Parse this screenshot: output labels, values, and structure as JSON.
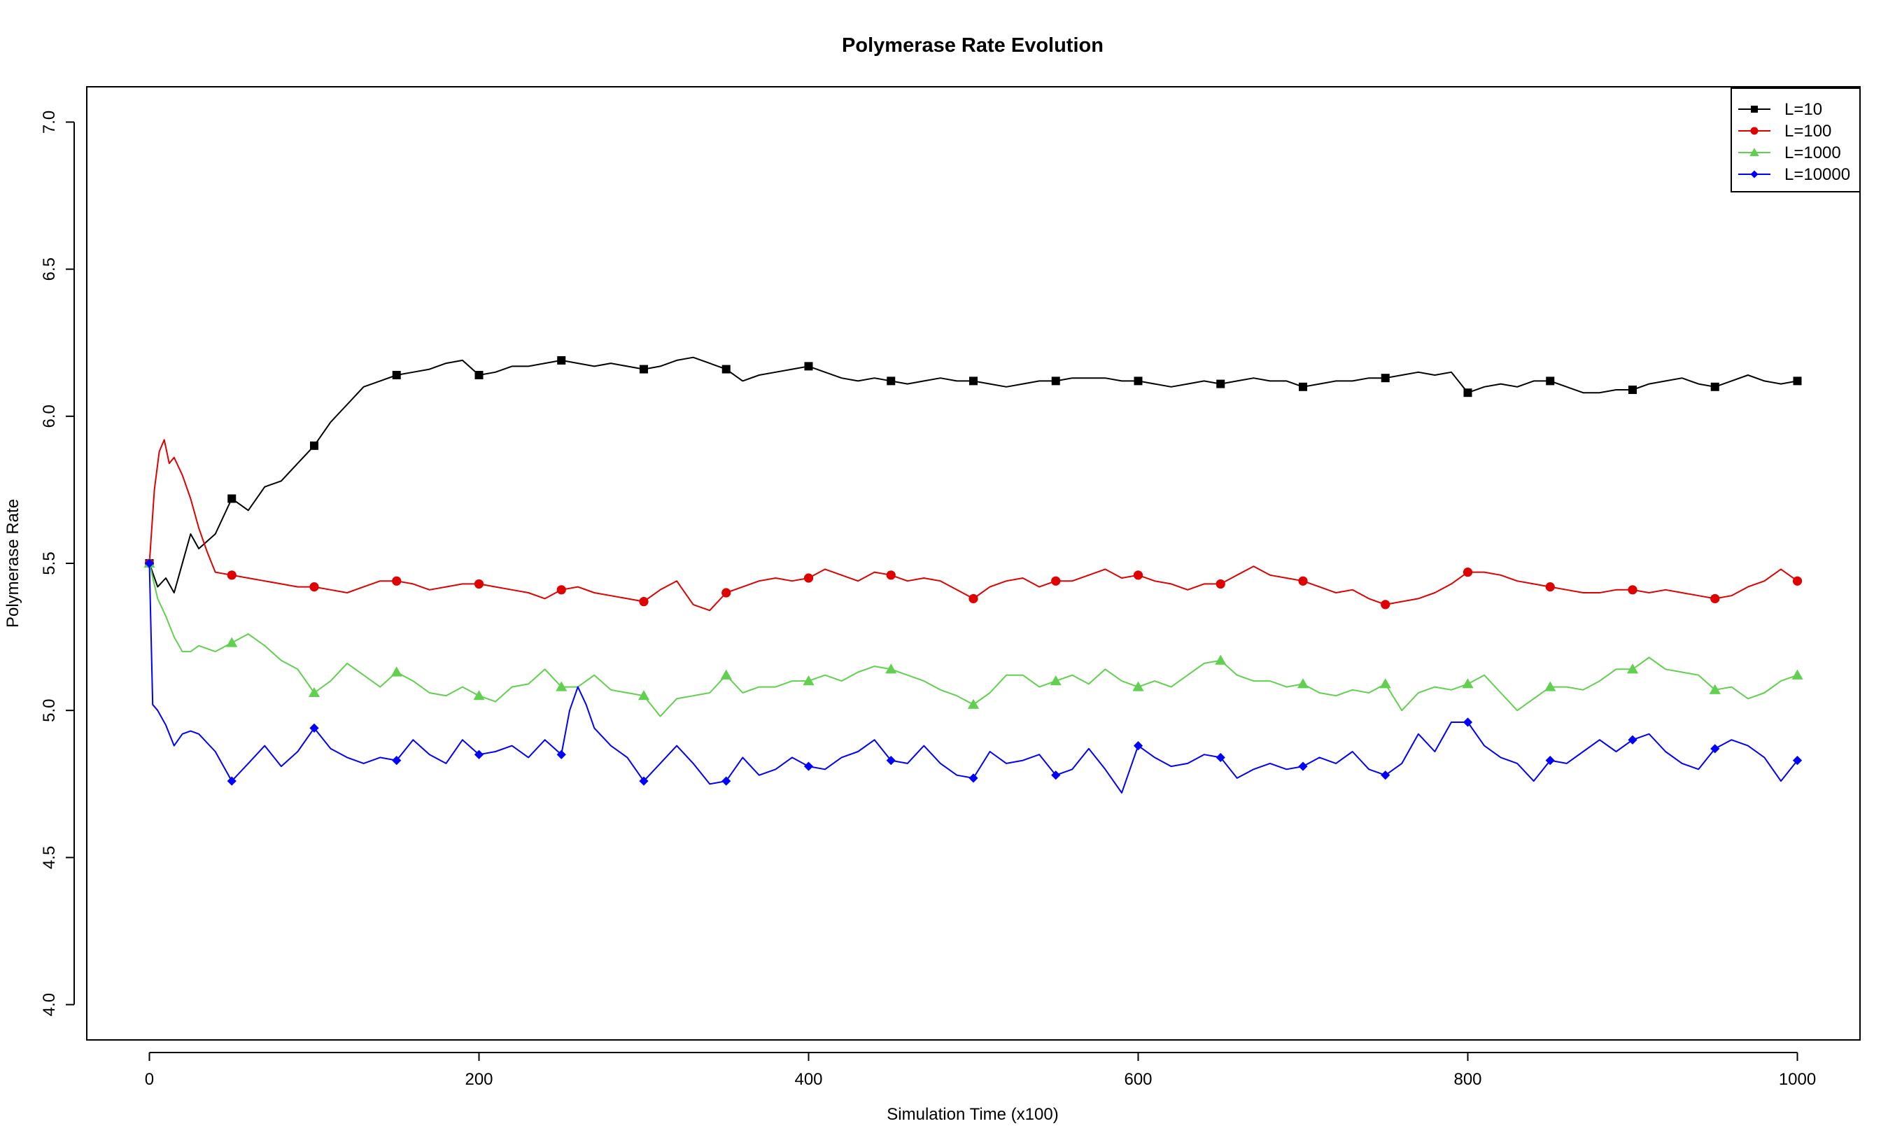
{
  "chart_data": {
    "type": "line",
    "title": "Polymerase Rate Evolution",
    "xlabel": "Simulation Time (x100)",
    "ylabel": "Polymerase Rate",
    "xlim": [
      -38,
      1038
    ],
    "ylim": [
      3.88,
      7.12
    ],
    "x_ticks": [
      0,
      200,
      400,
      600,
      800,
      1000
    ],
    "y_ticks": [
      4.0,
      4.5,
      5.0,
      5.5,
      6.0,
      6.5,
      7.0
    ],
    "x_tick_labels": [
      "0",
      "200",
      "400",
      "600",
      "800",
      "1000"
    ],
    "y_tick_labels": [
      "4.0",
      "4.5",
      "5.0",
      "5.5",
      "6.0",
      "6.5",
      "7.0"
    ],
    "grid": false,
    "legend_position": "top-right",
    "series": [
      {
        "name": "L=10",
        "color": "#000000",
        "marker": "square",
        "x": [
          0,
          5,
          10,
          15,
          20,
          25,
          30,
          40,
          50,
          60,
          70,
          80,
          90,
          100,
          110,
          120,
          130,
          140,
          150,
          160,
          170,
          180,
          190,
          200,
          210,
          220,
          230,
          240,
          250,
          260,
          270,
          280,
          290,
          300,
          310,
          320,
          330,
          340,
          350,
          360,
          370,
          380,
          390,
          400,
          410,
          420,
          430,
          440,
          450,
          460,
          470,
          480,
          490,
          500,
          510,
          520,
          530,
          540,
          550,
          560,
          570,
          580,
          590,
          600,
          610,
          620,
          630,
          640,
          650,
          660,
          670,
          680,
          690,
          700,
          710,
          720,
          730,
          740,
          750,
          760,
          770,
          780,
          790,
          800,
          810,
          820,
          830,
          840,
          850,
          860,
          870,
          880,
          890,
          900,
          910,
          920,
          930,
          940,
          950,
          960,
          970,
          980,
          990,
          1000
        ],
        "y": [
          5.5,
          5.42,
          5.45,
          5.4,
          5.5,
          5.6,
          5.55,
          5.6,
          5.72,
          5.68,
          5.76,
          5.78,
          5.84,
          5.9,
          5.98,
          6.04,
          6.1,
          6.12,
          6.14,
          6.15,
          6.16,
          6.18,
          6.19,
          6.14,
          6.15,
          6.17,
          6.17,
          6.18,
          6.19,
          6.18,
          6.17,
          6.18,
          6.17,
          6.16,
          6.17,
          6.19,
          6.2,
          6.18,
          6.16,
          6.12,
          6.14,
          6.15,
          6.16,
          6.17,
          6.15,
          6.13,
          6.12,
          6.13,
          6.12,
          6.11,
          6.12,
          6.13,
          6.12,
          6.12,
          6.11,
          6.1,
          6.11,
          6.12,
          6.12,
          6.13,
          6.13,
          6.13,
          6.12,
          6.12,
          6.11,
          6.1,
          6.11,
          6.12,
          6.11,
          6.12,
          6.13,
          6.12,
          6.12,
          6.1,
          6.11,
          6.12,
          6.12,
          6.13,
          6.13,
          6.14,
          6.15,
          6.14,
          6.15,
          6.08,
          6.1,
          6.11,
          6.1,
          6.12,
          6.12,
          6.1,
          6.08,
          6.08,
          6.09,
          6.09,
          6.11,
          6.12,
          6.13,
          6.11,
          6.1,
          6.12,
          6.14,
          6.12,
          6.11,
          6.12
        ]
      },
      {
        "name": "L=100",
        "color": "#df0000",
        "marker": "circle",
        "x": [
          0,
          3,
          6,
          9,
          12,
          15,
          20,
          25,
          30,
          35,
          40,
          50,
          60,
          70,
          80,
          90,
          100,
          110,
          120,
          130,
          140,
          150,
          160,
          170,
          180,
          190,
          200,
          210,
          220,
          230,
          240,
          250,
          260,
          270,
          280,
          290,
          300,
          310,
          320,
          330,
          340,
          350,
          360,
          370,
          380,
          390,
          400,
          410,
          420,
          430,
          440,
          450,
          460,
          470,
          480,
          490,
          500,
          510,
          520,
          530,
          540,
          550,
          560,
          570,
          580,
          590,
          600,
          610,
          620,
          630,
          640,
          650,
          660,
          670,
          680,
          690,
          700,
          710,
          720,
          730,
          740,
          750,
          760,
          770,
          780,
          790,
          800,
          810,
          820,
          830,
          840,
          850,
          860,
          870,
          880,
          890,
          900,
          910,
          920,
          930,
          940,
          950,
          960,
          970,
          980,
          990,
          1000
        ],
        "y": [
          5.5,
          5.75,
          5.88,
          5.92,
          5.84,
          5.86,
          5.8,
          5.72,
          5.62,
          5.54,
          5.47,
          5.46,
          5.45,
          5.44,
          5.43,
          5.42,
          5.42,
          5.41,
          5.4,
          5.42,
          5.44,
          5.44,
          5.43,
          5.41,
          5.42,
          5.43,
          5.43,
          5.42,
          5.41,
          5.4,
          5.38,
          5.41,
          5.42,
          5.4,
          5.39,
          5.38,
          5.37,
          5.41,
          5.44,
          5.36,
          5.34,
          5.4,
          5.42,
          5.44,
          5.45,
          5.44,
          5.45,
          5.48,
          5.46,
          5.44,
          5.47,
          5.46,
          5.44,
          5.45,
          5.44,
          5.41,
          5.38,
          5.42,
          5.44,
          5.45,
          5.42,
          5.44,
          5.44,
          5.46,
          5.48,
          5.45,
          5.46,
          5.44,
          5.43,
          5.41,
          5.43,
          5.43,
          5.46,
          5.49,
          5.46,
          5.45,
          5.44,
          5.42,
          5.4,
          5.41,
          5.38,
          5.36,
          5.37,
          5.38,
          5.4,
          5.43,
          5.47,
          5.47,
          5.46,
          5.44,
          5.43,
          5.42,
          5.41,
          5.4,
          5.4,
          5.41,
          5.41,
          5.4,
          5.41,
          5.4,
          5.39,
          5.38,
          5.39,
          5.42,
          5.44,
          5.48,
          5.44
        ]
      },
      {
        "name": "L=1000",
        "color": "#61d04f",
        "marker": "triangle",
        "x": [
          0,
          5,
          10,
          15,
          20,
          25,
          30,
          40,
          50,
          60,
          70,
          80,
          90,
          100,
          110,
          120,
          130,
          140,
          150,
          160,
          170,
          180,
          190,
          200,
          210,
          220,
          230,
          240,
          250,
          260,
          270,
          280,
          290,
          300,
          310,
          320,
          330,
          340,
          350,
          360,
          370,
          380,
          390,
          400,
          410,
          420,
          430,
          440,
          450,
          460,
          470,
          480,
          490,
          500,
          510,
          520,
          530,
          540,
          550,
          560,
          570,
          580,
          590,
          600,
          610,
          620,
          630,
          640,
          650,
          660,
          670,
          680,
          690,
          700,
          710,
          720,
          730,
          740,
          750,
          760,
          770,
          780,
          790,
          800,
          810,
          820,
          830,
          840,
          850,
          860,
          870,
          880,
          890,
          900,
          910,
          920,
          930,
          940,
          950,
          960,
          970,
          980,
          990,
          1000
        ],
        "y": [
          5.5,
          5.38,
          5.32,
          5.25,
          5.2,
          5.2,
          5.22,
          5.2,
          5.23,
          5.26,
          5.22,
          5.17,
          5.14,
          5.06,
          5.1,
          5.16,
          5.12,
          5.08,
          5.13,
          5.1,
          5.06,
          5.05,
          5.08,
          5.05,
          5.03,
          5.08,
          5.09,
          5.14,
          5.08,
          5.08,
          5.12,
          5.07,
          5.06,
          5.05,
          4.98,
          5.04,
          5.05,
          5.06,
          5.12,
          5.06,
          5.08,
          5.08,
          5.1,
          5.1,
          5.12,
          5.1,
          5.13,
          5.15,
          5.14,
          5.12,
          5.1,
          5.07,
          5.05,
          5.02,
          5.06,
          5.12,
          5.12,
          5.08,
          5.1,
          5.12,
          5.09,
          5.14,
          5.1,
          5.08,
          5.1,
          5.08,
          5.12,
          5.16,
          5.17,
          5.12,
          5.1,
          5.1,
          5.08,
          5.09,
          5.06,
          5.05,
          5.07,
          5.06,
          5.09,
          5.0,
          5.06,
          5.08,
          5.07,
          5.09,
          5.12,
          5.06,
          5.0,
          5.04,
          5.08,
          5.08,
          5.07,
          5.1,
          5.14,
          5.14,
          5.18,
          5.14,
          5.13,
          5.12,
          5.07,
          5.08,
          5.04,
          5.06,
          5.1,
          5.12
        ]
      },
      {
        "name": "L=10000",
        "color": "#0000ff",
        "marker": "diamond",
        "x": [
          0,
          2,
          5,
          10,
          15,
          20,
          25,
          30,
          40,
          50,
          60,
          70,
          80,
          90,
          100,
          110,
          120,
          130,
          140,
          150,
          160,
          170,
          180,
          190,
          200,
          210,
          220,
          230,
          240,
          250,
          255,
          260,
          265,
          270,
          280,
          290,
          300,
          310,
          320,
          330,
          340,
          350,
          360,
          370,
          380,
          390,
          400,
          410,
          420,
          430,
          440,
          450,
          460,
          470,
          480,
          490,
          500,
          510,
          520,
          530,
          540,
          550,
          560,
          570,
          580,
          590,
          600,
          610,
          620,
          630,
          640,
          650,
          660,
          670,
          680,
          690,
          700,
          710,
          720,
          730,
          740,
          750,
          760,
          770,
          780,
          790,
          800,
          810,
          820,
          830,
          840,
          850,
          860,
          870,
          880,
          890,
          900,
          910,
          920,
          930,
          940,
          950,
          960,
          970,
          980,
          990,
          1000
        ],
        "y": [
          5.5,
          5.02,
          5.0,
          4.95,
          4.88,
          4.92,
          4.93,
          4.92,
          4.86,
          4.76,
          4.82,
          4.88,
          4.81,
          4.86,
          4.94,
          4.87,
          4.84,
          4.82,
          4.84,
          4.83,
          4.9,
          4.85,
          4.82,
          4.9,
          4.85,
          4.86,
          4.88,
          4.84,
          4.9,
          4.85,
          5.0,
          5.08,
          5.02,
          4.94,
          4.88,
          4.84,
          4.76,
          4.82,
          4.88,
          4.82,
          4.75,
          4.76,
          4.84,
          4.78,
          4.8,
          4.84,
          4.81,
          4.8,
          4.84,
          4.86,
          4.9,
          4.83,
          4.82,
          4.88,
          4.82,
          4.78,
          4.77,
          4.86,
          4.82,
          4.83,
          4.85,
          4.78,
          4.8,
          4.87,
          4.8,
          4.72,
          4.88,
          4.84,
          4.81,
          4.82,
          4.85,
          4.84,
          4.77,
          4.8,
          4.82,
          4.8,
          4.81,
          4.84,
          4.82,
          4.86,
          4.8,
          4.78,
          4.82,
          4.92,
          4.86,
          4.96,
          4.96,
          4.88,
          4.84,
          4.82,
          4.76,
          4.83,
          4.82,
          4.86,
          4.9,
          4.86,
          4.9,
          4.92,
          4.86,
          4.82,
          4.8,
          4.87,
          4.9,
          4.88,
          4.84,
          4.76,
          4.83
        ]
      }
    ]
  }
}
